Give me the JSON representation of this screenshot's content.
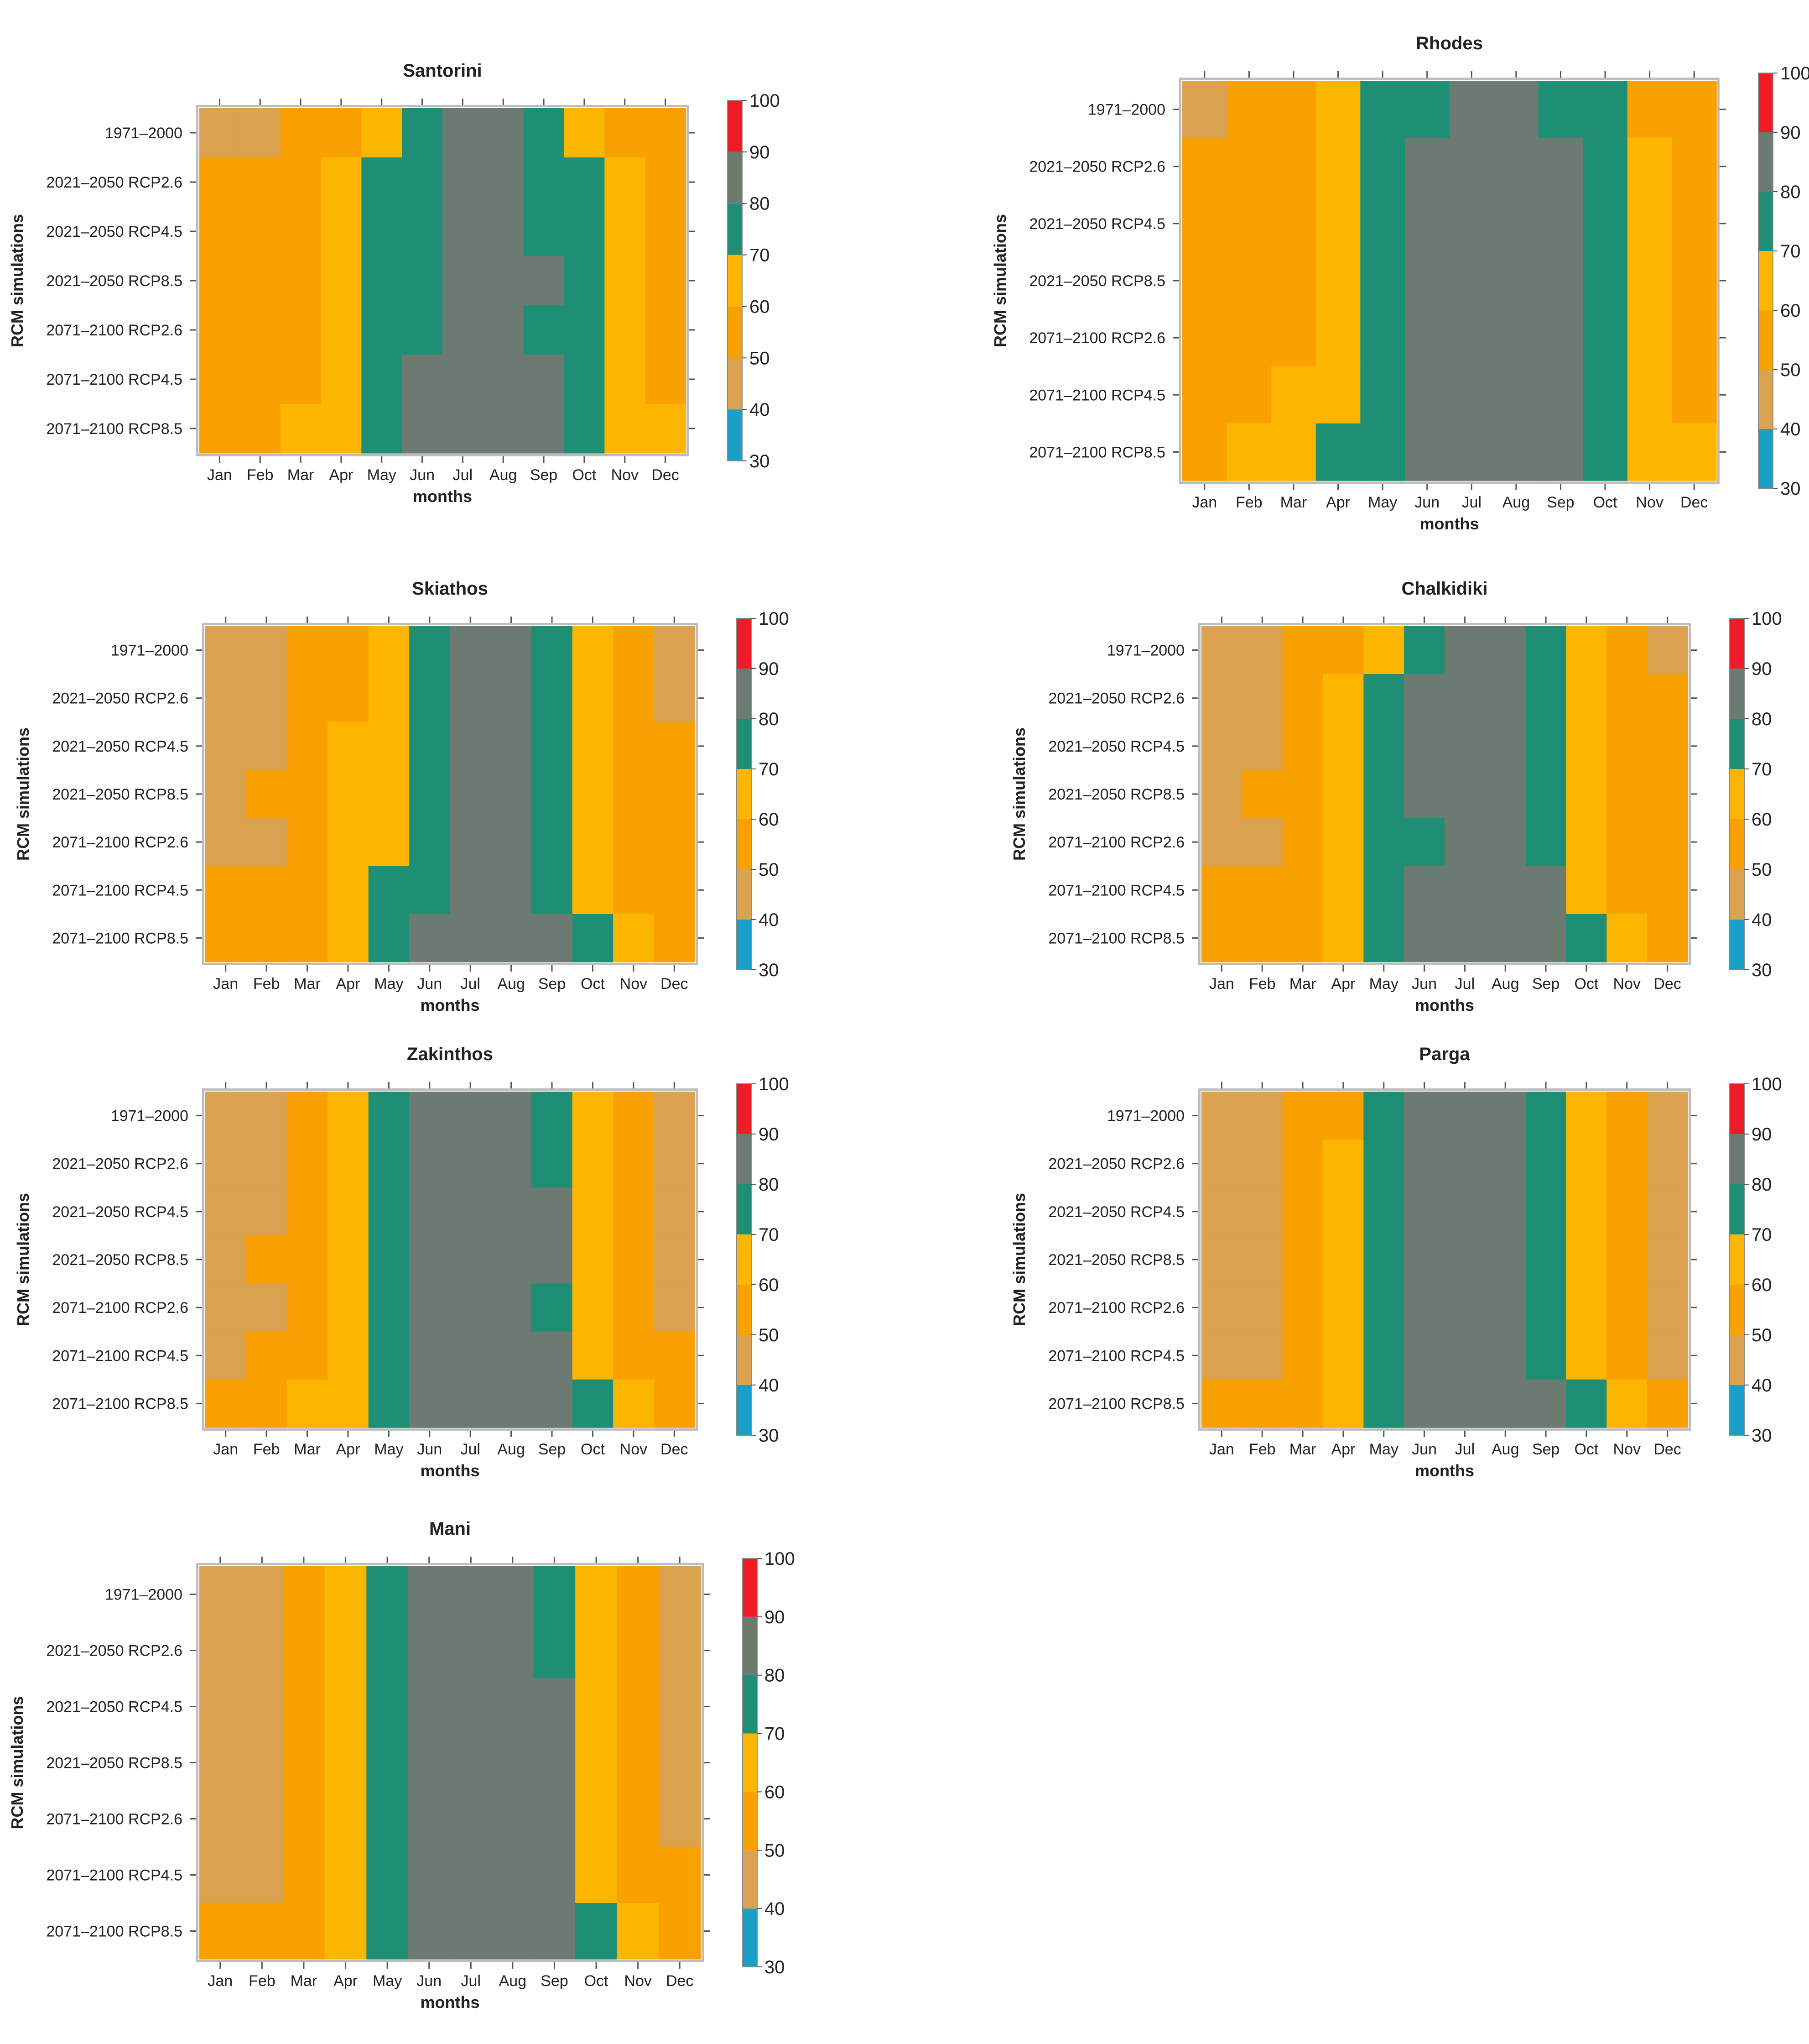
{
  "chart_data": {
    "type": "heatmap",
    "xlabel": "months",
    "ylabel": "RCM simulations",
    "months": [
      "Jan",
      "Feb",
      "Mar",
      "Apr",
      "May",
      "Jun",
      "Jul",
      "Aug",
      "Sep",
      "Oct",
      "Nov",
      "Dec"
    ],
    "scenarios": [
      "1971–2000",
      "2021–2050 RCP2.6",
      "2021–2050 RCP4.5",
      "2021–2050 RCP8.5",
      "2071–2100 RCP2.6",
      "2071–2100 RCP4.5",
      "2071–2100 RCP8.5"
    ],
    "colorbar": {
      "ticks": [
        30,
        40,
        50,
        60,
        70,
        80,
        90,
        100
      ],
      "bins": [
        {
          "min": 30,
          "max": 40,
          "color": "#1a9fc9"
        },
        {
          "min": 40,
          "max": 50,
          "color": "#dba24f"
        },
        {
          "min": 50,
          "max": 60,
          "color": "#f9a100"
        },
        {
          "min": 60,
          "max": 70,
          "color": "#fdb600"
        },
        {
          "min": 70,
          "max": 80,
          "color": "#1e8f74"
        },
        {
          "min": 80,
          "max": 90,
          "color": "#6c7a71"
        },
        {
          "min": 90,
          "max": 100,
          "color": "#ef1c26"
        }
      ]
    },
    "panels": [
      {
        "title": "Santorini",
        "values": [
          [
            45,
            45,
            55,
            55,
            65,
            75,
            85,
            85,
            75,
            65,
            55,
            55
          ],
          [
            55,
            55,
            55,
            65,
            75,
            75,
            85,
            85,
            75,
            75,
            65,
            55
          ],
          [
            55,
            55,
            55,
            65,
            75,
            75,
            85,
            85,
            75,
            75,
            65,
            55
          ],
          [
            55,
            55,
            55,
            65,
            75,
            75,
            85,
            85,
            85,
            75,
            65,
            55
          ],
          [
            55,
            55,
            55,
            65,
            75,
            75,
            85,
            85,
            75,
            75,
            65,
            55
          ],
          [
            55,
            55,
            55,
            65,
            75,
            85,
            85,
            85,
            85,
            75,
            65,
            55
          ],
          [
            55,
            55,
            65,
            65,
            75,
            85,
            85,
            85,
            85,
            75,
            65,
            65
          ]
        ]
      },
      {
        "title": "Rhodes",
        "values": [
          [
            45,
            55,
            55,
            65,
            75,
            75,
            85,
            85,
            75,
            75,
            55,
            55
          ],
          [
            55,
            55,
            55,
            65,
            75,
            85,
            85,
            85,
            85,
            75,
            65,
            55
          ],
          [
            55,
            55,
            55,
            65,
            75,
            85,
            85,
            85,
            85,
            75,
            65,
            55
          ],
          [
            55,
            55,
            55,
            65,
            75,
            85,
            85,
            85,
            85,
            75,
            65,
            55
          ],
          [
            55,
            55,
            55,
            65,
            75,
            85,
            85,
            85,
            85,
            75,
            65,
            55
          ],
          [
            55,
            55,
            65,
            65,
            75,
            85,
            85,
            85,
            85,
            75,
            65,
            55
          ],
          [
            55,
            65,
            65,
            75,
            75,
            85,
            85,
            85,
            85,
            75,
            65,
            65
          ]
        ]
      },
      {
        "title": "Skiathos",
        "values": [
          [
            45,
            45,
            55,
            55,
            65,
            75,
            85,
            85,
            75,
            65,
            55,
            45
          ],
          [
            45,
            45,
            55,
            55,
            65,
            75,
            85,
            85,
            75,
            65,
            55,
            45
          ],
          [
            45,
            45,
            55,
            65,
            65,
            75,
            85,
            85,
            75,
            65,
            55,
            55
          ],
          [
            45,
            55,
            55,
            65,
            65,
            75,
            85,
            85,
            75,
            65,
            55,
            55
          ],
          [
            45,
            45,
            55,
            65,
            65,
            75,
            85,
            85,
            75,
            65,
            55,
            55
          ],
          [
            55,
            55,
            55,
            65,
            75,
            75,
            85,
            85,
            75,
            65,
            55,
            55
          ],
          [
            55,
            55,
            55,
            65,
            75,
            85,
            85,
            85,
            85,
            75,
            65,
            55
          ]
        ]
      },
      {
        "title": "Chalkidiki",
        "values": [
          [
            45,
            45,
            55,
            55,
            65,
            75,
            85,
            85,
            75,
            65,
            55,
            45
          ],
          [
            45,
            45,
            55,
            65,
            75,
            85,
            85,
            85,
            75,
            65,
            55,
            55
          ],
          [
            45,
            45,
            55,
            65,
            75,
            85,
            85,
            85,
            75,
            65,
            55,
            55
          ],
          [
            45,
            55,
            55,
            65,
            75,
            85,
            85,
            85,
            75,
            65,
            55,
            55
          ],
          [
            45,
            45,
            55,
            65,
            75,
            75,
            85,
            85,
            75,
            65,
            55,
            55
          ],
          [
            55,
            55,
            55,
            65,
            75,
            85,
            85,
            85,
            85,
            65,
            55,
            55
          ],
          [
            55,
            55,
            55,
            65,
            75,
            85,
            85,
            85,
            85,
            75,
            65,
            55
          ]
        ]
      },
      {
        "title": "Zakinthos",
        "values": [
          [
            45,
            45,
            55,
            65,
            75,
            85,
            85,
            85,
            75,
            65,
            55,
            45
          ],
          [
            45,
            45,
            55,
            65,
            75,
            85,
            85,
            85,
            75,
            65,
            55,
            45
          ],
          [
            45,
            45,
            55,
            65,
            75,
            85,
            85,
            85,
            85,
            65,
            55,
            45
          ],
          [
            45,
            55,
            55,
            65,
            75,
            85,
            85,
            85,
            85,
            65,
            55,
            45
          ],
          [
            45,
            45,
            55,
            65,
            75,
            85,
            85,
            85,
            75,
            65,
            55,
            45
          ],
          [
            45,
            55,
            55,
            65,
            75,
            85,
            85,
            85,
            85,
            65,
            55,
            55
          ],
          [
            55,
            55,
            65,
            65,
            75,
            85,
            85,
            85,
            85,
            75,
            65,
            55
          ]
        ]
      },
      {
        "title": "Parga",
        "values": [
          [
            45,
            45,
            55,
            55,
            75,
            85,
            85,
            85,
            75,
            65,
            55,
            45
          ],
          [
            45,
            45,
            55,
            65,
            75,
            85,
            85,
            85,
            75,
            65,
            55,
            45
          ],
          [
            45,
            45,
            55,
            65,
            75,
            85,
            85,
            85,
            75,
            65,
            55,
            45
          ],
          [
            45,
            45,
            55,
            65,
            75,
            85,
            85,
            85,
            75,
            65,
            55,
            45
          ],
          [
            45,
            45,
            55,
            65,
            75,
            85,
            85,
            85,
            75,
            65,
            55,
            45
          ],
          [
            45,
            45,
            55,
            65,
            75,
            85,
            85,
            85,
            75,
            65,
            55,
            45
          ],
          [
            55,
            55,
            55,
            65,
            75,
            85,
            85,
            85,
            85,
            75,
            65,
            55
          ]
        ]
      },
      {
        "title": "Mani",
        "values": [
          [
            45,
            45,
            55,
            65,
            75,
            85,
            85,
            85,
            75,
            65,
            55,
            45
          ],
          [
            45,
            45,
            55,
            65,
            75,
            85,
            85,
            85,
            75,
            65,
            55,
            45
          ],
          [
            45,
            45,
            55,
            65,
            75,
            85,
            85,
            85,
            85,
            65,
            55,
            45
          ],
          [
            45,
            45,
            55,
            65,
            75,
            85,
            85,
            85,
            85,
            65,
            55,
            45
          ],
          [
            45,
            45,
            55,
            65,
            75,
            85,
            85,
            85,
            85,
            65,
            55,
            45
          ],
          [
            45,
            45,
            55,
            65,
            75,
            85,
            85,
            85,
            85,
            65,
            55,
            55
          ],
          [
            55,
            55,
            55,
            65,
            75,
            85,
            85,
            85,
            85,
            75,
            65,
            55
          ]
        ]
      }
    ]
  }
}
